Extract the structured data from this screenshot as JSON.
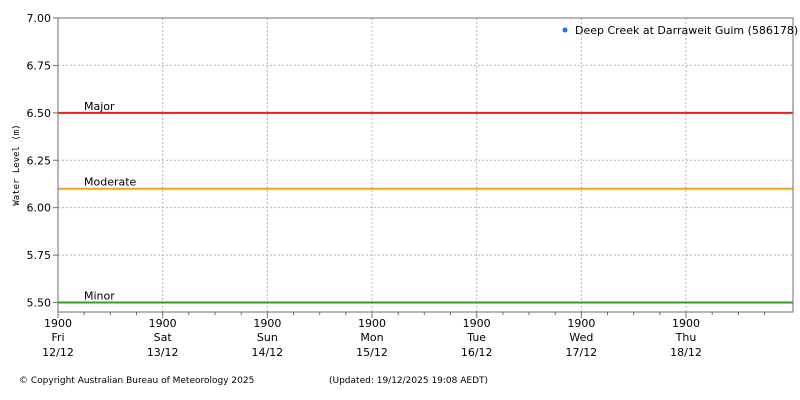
{
  "chart_data": {
    "type": "line",
    "ylabel": "Water Level (m)",
    "ylim": [
      5.45,
      7.0
    ],
    "yticks": [
      "7.00",
      "6.75",
      "6.50",
      "6.25",
      "6.00",
      "5.75",
      "5.50"
    ],
    "y_tick_values": [
      7.0,
      6.75,
      6.5,
      6.25,
      6.0,
      5.75,
      5.5
    ],
    "x_range_days": [
      0,
      7
    ],
    "x_ticks": [
      {
        "time": "1900",
        "day": "Fri",
        "date": "12/12"
      },
      {
        "time": "1900",
        "day": "Sat",
        "date": "13/12"
      },
      {
        "time": "1900",
        "day": "Sun",
        "date": "14/12"
      },
      {
        "time": "1900",
        "day": "Mon",
        "date": "15/12"
      },
      {
        "time": "1900",
        "day": "Tue",
        "date": "16/12"
      },
      {
        "time": "1900",
        "day": "Wed",
        "date": "17/12"
      },
      {
        "time": "1900",
        "day": "Thu",
        "date": "18/12"
      }
    ],
    "grid": true,
    "legend": {
      "placement": "top-right",
      "entries": [
        {
          "name": "Deep Creek at Darraweit Guim (586178)",
          "color": "#1f77d4"
        }
      ]
    },
    "thresholds": [
      {
        "label": "Major",
        "value": 6.5,
        "color": "#e8201c"
      },
      {
        "label": "Moderate",
        "value": 6.1,
        "color": "#f7a11a"
      },
      {
        "label": "Minor",
        "value": 5.5,
        "color": "#3a9a2b"
      }
    ],
    "series": []
  },
  "footer": {
    "copyright": "© Copyright Australian Bureau of Meteorology 2025",
    "updated": "(Updated: 19/12/2025 19:08 AEDT)"
  }
}
